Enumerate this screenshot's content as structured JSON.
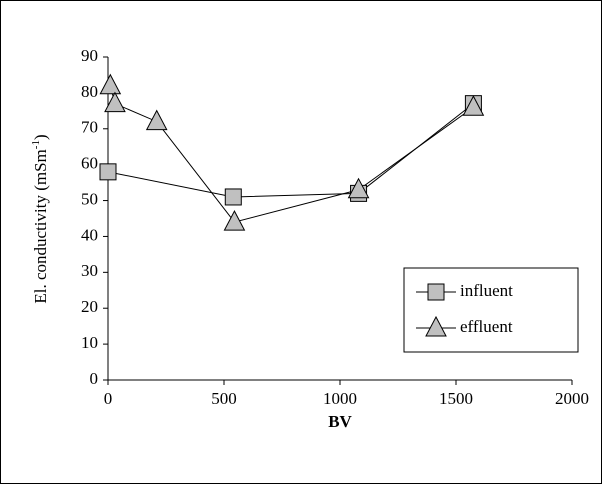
{
  "chart_data": {
    "type": "line",
    "xlabel": "BV",
    "ylabel": {
      "base": "El. conductivity (mSm",
      "sup": "-1",
      "close": ")"
    },
    "xlim": [
      0,
      2000
    ],
    "xticks": [
      0,
      500,
      1000,
      1500,
      2000
    ],
    "ylim": [
      0,
      90
    ],
    "yticks": [
      0,
      10,
      20,
      30,
      40,
      50,
      60,
      70,
      80,
      90
    ],
    "grid": false,
    "legend": "lower right",
    "series": [
      {
        "name": "influent",
        "color": "#c0c0c0",
        "marker": "square",
        "x": [
          0,
          540,
          1080,
          1575
        ],
        "values": [
          58,
          51,
          52,
          77
        ]
      },
      {
        "name": "effluent",
        "color": "#c0c0c0",
        "marker": "triangle",
        "x": [
          10,
          30,
          210,
          545,
          1080,
          1575
        ],
        "values": [
          82,
          77,
          72,
          44,
          53,
          76
        ]
      }
    ]
  }
}
